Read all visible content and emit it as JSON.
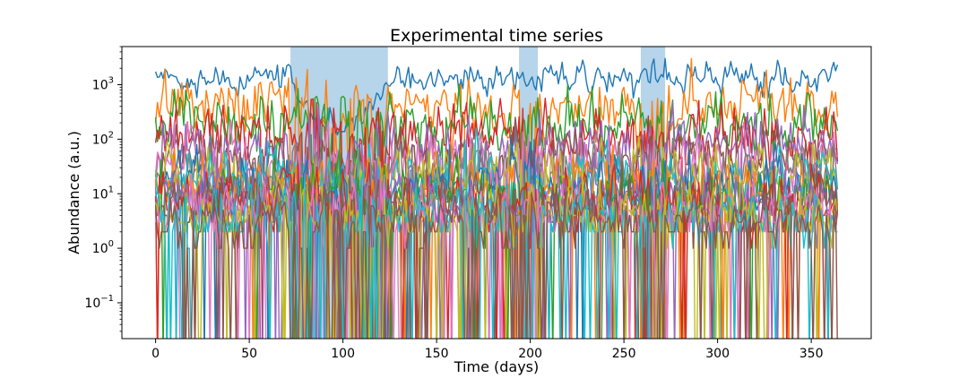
{
  "chart_data": {
    "type": "line",
    "title": "Experimental time series",
    "xlabel": "Time (days)",
    "ylabel": "Abundance (a.u.)",
    "xlim": [
      -18,
      382
    ],
    "ylim": [
      0.022,
      5000
    ],
    "yscale": "log",
    "grid": false,
    "legend": "none",
    "x_ticks": [
      {
        "value": 0,
        "label": "0"
      },
      {
        "value": 50,
        "label": "50"
      },
      {
        "value": 100,
        "label": "100"
      },
      {
        "value": 150,
        "label": "150"
      },
      {
        "value": 200,
        "label": "200"
      },
      {
        "value": 250,
        "label": "250"
      },
      {
        "value": 300,
        "label": "300"
      },
      {
        "value": 350,
        "label": "350"
      }
    ],
    "y_ticks": [
      {
        "value": 0.1,
        "base": "10",
        "exp": "−1"
      },
      {
        "value": 1,
        "base": "10",
        "exp": "0"
      },
      {
        "value": 10,
        "base": "10",
        "exp": "1"
      },
      {
        "value": 100,
        "base": "10",
        "exp": "2"
      },
      {
        "value": 1000,
        "base": "10",
        "exp": "3"
      }
    ],
    "shaded_regions": [
      {
        "start": 72,
        "end": 124
      },
      {
        "start": 194,
        "end": 204
      },
      {
        "start": 259,
        "end": 272
      }
    ],
    "shade_color": "#b6d4ea",
    "x_start": 0,
    "x_end": 364,
    "n_points": 365,
    "series_colors": [
      "#1f77b4",
      "#ff7f0e",
      "#2ca02c",
      "#d62728",
      "#9467bd",
      "#8c564b",
      "#e377c2",
      "#7f7f7f",
      "#bcbd22",
      "#17becf",
      "#1f77b4",
      "#ff7f0e",
      "#2ca02c",
      "#d62728",
      "#9467bd",
      "#8c564b",
      "#e377c2",
      "#bcbd22",
      "#17becf",
      "#8c564b"
    ],
    "series_levels": [
      1300,
      380,
      180,
      110,
      70,
      45,
      35,
      25,
      20,
      16,
      13,
      11,
      9,
      8,
      7,
      6,
      5,
      4,
      3.5,
      3
    ],
    "series_zero_rate": [
      0,
      0.002,
      0.004,
      0.01,
      0.04,
      0.03,
      0.04,
      0.03,
      0.06,
      0.02,
      0.03,
      0.04,
      0.05,
      0.05,
      0.06,
      0.07,
      0.06,
      0.07,
      0.08,
      0.08
    ]
  }
}
